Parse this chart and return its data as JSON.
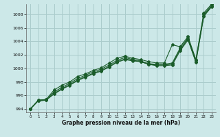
{
  "xlabel": "Graphe pression niveau de la mer (hPa)",
  "bg_color": "#cce8e8",
  "grid_color": "#aacccc",
  "line_color": "#1a5c2a",
  "ylim": [
    993.5,
    1009.5
  ],
  "xlim": [
    -0.5,
    23.5
  ],
  "yticks": [
    994,
    996,
    998,
    1000,
    1002,
    1004,
    1006,
    1008
  ],
  "xticks": [
    0,
    1,
    2,
    3,
    4,
    5,
    6,
    7,
    8,
    9,
    10,
    11,
    12,
    13,
    14,
    15,
    16,
    17,
    18,
    19,
    20,
    21,
    22,
    23
  ],
  "series": [
    [
      994.0,
      995.3,
      995.4,
      996.8,
      997.5,
      998.0,
      998.8,
      999.2,
      999.7,
      1000.1,
      1000.8,
      1001.5,
      1001.8,
      1001.5,
      1001.3,
      1001.0,
      1000.8,
      1000.8,
      1003.5,
      1003.2,
      1004.7,
      1001.3,
      1008.2,
      1009.5
    ],
    [
      994.0,
      995.3,
      995.4,
      996.5,
      997.2,
      997.8,
      998.5,
      999.0,
      999.5,
      999.9,
      1000.5,
      1001.2,
      1001.6,
      1001.3,
      1001.1,
      1000.7,
      1000.6,
      1000.6,
      1000.8,
      1003.0,
      1004.5,
      1001.2,
      1008.0,
      1009.3
    ],
    [
      994.0,
      995.2,
      995.3,
      996.3,
      997.0,
      997.6,
      998.3,
      998.8,
      999.3,
      999.7,
      1000.3,
      1001.0,
      1001.4,
      1001.2,
      1001.0,
      1000.6,
      1000.5,
      1000.5,
      1000.6,
      1002.8,
      1004.3,
      1001.0,
      1007.8,
      1009.2
    ],
    [
      994.0,
      995.2,
      995.3,
      996.2,
      996.9,
      997.5,
      998.2,
      998.7,
      999.2,
      999.6,
      1000.2,
      1000.9,
      1001.3,
      1001.1,
      1001.0,
      1000.6,
      1000.4,
      1000.4,
      1000.5,
      1002.6,
      1004.2,
      1000.9,
      1007.7,
      1009.1
    ]
  ]
}
